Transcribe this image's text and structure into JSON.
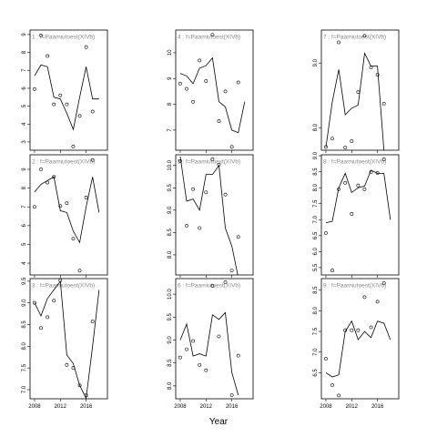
{
  "xlabel": "Year",
  "chart_data": [
    {
      "type": "scatter",
      "title": "1 : f=Paamiutoest(XIVb)",
      "x": [
        2008,
        2009,
        2010,
        2011,
        2012,
        2013,
        2014,
        2015,
        2016,
        2017,
        2018
      ],
      "points": [
        5.95,
        8.95,
        7.8,
        5.1,
        5.6,
        5.1,
        2.75,
        4.45,
        8.3,
        4.7,
        null
      ],
      "fit": [
        6.7,
        7.3,
        7.2,
        5.5,
        5.4,
        4.6,
        3.7,
        5.5,
        7.2,
        5.4,
        5.4
      ],
      "xlim": [
        2007.3,
        2019.3
      ],
      "xticks": [
        2008,
        2012,
        2016
      ],
      "ylim": [
        2.54,
        9.25
      ],
      "yticks": [
        3,
        4,
        5,
        6,
        7,
        8,
        9
      ]
    },
    {
      "type": "scatter",
      "title": "2 : f=Paamiutoest(XIVb)",
      "x": [
        2008,
        2009,
        2010,
        2011,
        2012,
        2013,
        2014,
        2015,
        2016,
        2017,
        2018
      ],
      "points": [
        7.0,
        9.0,
        8.3,
        8.6,
        7.05,
        7.2,
        5.3,
        3.6,
        7.5,
        9.5,
        null
      ],
      "fit": [
        7.8,
        8.2,
        8.4,
        8.6,
        6.8,
        6.7,
        5.7,
        5.1,
        7.0,
        8.6,
        6.7
      ],
      "xlim": [
        2007.3,
        2019.3
      ],
      "xticks": [
        2008,
        2012,
        2016
      ],
      "ylim": [
        3.37,
        9.78
      ],
      "yticks": [
        4,
        5,
        6,
        7,
        8,
        9
      ]
    },
    {
      "type": "scatter",
      "title": "3 : f=Paamiutoest(XIVb)",
      "x": [
        2008,
        2009,
        2010,
        2011,
        2012,
        2013,
        2014,
        2015,
        2016,
        2017,
        2018
      ],
      "points": [
        9.0,
        8.42,
        8.67,
        9.05,
        9.52,
        7.57,
        7.5,
        7.1,
        6.87,
        8.57,
        null
      ],
      "fit": [
        9.0,
        8.7,
        9.1,
        9.3,
        9.5,
        7.8,
        7.6,
        7.1,
        6.8,
        8.0,
        9.3
      ],
      "xlim": [
        2007.3,
        2019.3
      ],
      "xticks": [
        2008,
        2012,
        2016
      ],
      "ylim": [
        6.79,
        9.56
      ],
      "yticks": [
        {
          "value": 7,
          "label": "7.0"
        },
        7.5,
        {
          "value": 8,
          "label": "8.0"
        },
        8.5,
        {
          "value": 9,
          "label": "9.0"
        },
        9.5
      ]
    },
    {
      "type": "scatter",
      "title": "4 : f=Paamiutoest(XIVb)",
      "x": [
        2008,
        2009,
        2010,
        2011,
        2012,
        2013,
        2014,
        2015,
        2016,
        2017,
        2018
      ],
      "points": [
        8.8,
        8.6,
        8.1,
        9.7,
        8.9,
        10.7,
        7.35,
        8.5,
        6.35,
        8.85,
        null
      ],
      "fit": [
        9.2,
        9.1,
        8.8,
        9.4,
        9.5,
        9.8,
        8.1,
        7.9,
        7.0,
        6.9,
        8.1
      ],
      "xlim": [
        2007.3,
        2019.3
      ],
      "xticks": [
        2008,
        2012,
        2016
      ],
      "ylim": [
        6.22,
        10.88
      ],
      "yticks": [
        7,
        8,
        9,
        10
      ]
    },
    {
      "type": "scatter",
      "title": "5 : f=Paamiutoest(XIVb)",
      "x": [
        2008,
        2009,
        2010,
        2011,
        2012,
        2013,
        2014,
        2015,
        2016,
        2017,
        2018
      ],
      "points": [
        10.1,
        8.65,
        9.47,
        8.6,
        9.4,
        10.14,
        10.02,
        9.35,
        7.65,
        8.4,
        null
      ],
      "fit": [
        10.2,
        9.2,
        9.25,
        9.0,
        9.8,
        9.8,
        10.0,
        8.6,
        8.2,
        7.5,
        null
      ],
      "xlim": [
        2007.3,
        2019.3
      ],
      "xticks": [
        2008,
        2012,
        2016
      ],
      "ylim": [
        7.55,
        10.24
      ],
      "yticks": [
        {
          "value": 8,
          "label": "8.0"
        },
        8.5,
        {
          "value": 9,
          "label": "9.0"
        },
        9.5,
        {
          "value": 10,
          "label": "10.0"
        }
      ]
    },
    {
      "type": "scatter",
      "title": "6 : f=Paamiutoest(XIVb)",
      "x": [
        2008,
        2009,
        2010,
        2011,
        2012,
        2013,
        2014,
        2015,
        2016,
        2017,
        2018
      ],
      "points": [
        8.62,
        8.8,
        8.98,
        8.46,
        8.34,
        10.18,
        9.08,
        10.26,
        7.8,
        8.66,
        null
      ],
      "fit": [
        9.0,
        9.35,
        8.65,
        8.7,
        8.65,
        9.55,
        9.45,
        9.6,
        8.3,
        7.8,
        null
      ],
      "xlim": [
        2007.3,
        2019.3
      ],
      "xticks": [
        2008,
        2012,
        2016
      ],
      "ylim": [
        7.72,
        10.34
      ],
      "yticks": [
        {
          "value": 8,
          "label": "8.0"
        },
        8.5,
        {
          "value": 9,
          "label": "9.0"
        },
        9.5,
        {
          "value": 10,
          "label": "10.0"
        }
      ]
    },
    {
      "type": "scatter",
      "title": "7 : f=Paamiutoest(XIVb)",
      "x": [
        2008,
        2009,
        2010,
        2011,
        2012,
        2013,
        2014,
        2015,
        2016,
        2017,
        2018
      ],
      "points": [
        7.7,
        7.83,
        9.32,
        7.69,
        7.79,
        8.55,
        9.42,
        8.93,
        8.82,
        8.37,
        null
      ],
      "fit": [
        7.7,
        8.4,
        8.9,
        8.2,
        8.3,
        8.35,
        9.15,
        8.95,
        8.95,
        7.65,
        null
      ],
      "xlim": [
        2007.3,
        2019.3
      ],
      "xticks": [
        2008,
        2012,
        2016
      ],
      "ylim": [
        7.65,
        9.51
      ],
      "yticks": [
        {
          "value": 8,
          "label": "8.0"
        },
        {
          "value": 9,
          "label": "9.0"
        }
      ]
    },
    {
      "type": "scatter",
      "title": "8 : f=Paamiutoest(XIVb)",
      "x": [
        2008,
        2009,
        2010,
        2011,
        2012,
        2013,
        2014,
        2015,
        2016,
        2017,
        2018
      ],
      "points": [
        6.58,
        5.41,
        7.95,
        8.15,
        7.18,
        8.07,
        7.95,
        8.49,
        8.46,
        8.89,
        null
      ],
      "fit": [
        6.9,
        6.95,
        8.0,
        8.45,
        7.85,
        8.0,
        8.05,
        8.55,
        8.45,
        8.45,
        7.0
      ],
      "xlim": [
        2007.3,
        2019.3
      ],
      "xticks": [
        2008,
        2012,
        2016
      ],
      "ylim": [
        5.27,
        9.03
      ],
      "yticks": [
        5.5,
        {
          "value": 6,
          "label": "6.0"
        },
        6.5,
        {
          "value": 7,
          "label": "7.0"
        },
        7.5,
        {
          "value": 8,
          "label": "8.0"
        },
        8.5,
        {
          "value": 9,
          "label": "9.0"
        }
      ]
    },
    {
      "type": "scatter",
      "title": "9 : f=Paamiutoest(XIVb)",
      "x": [
        2008,
        2009,
        2010,
        2011,
        2012,
        2013,
        2014,
        2015,
        2016,
        2017,
        2018
      ],
      "points": [
        6.84,
        6.2,
        5.95,
        7.53,
        7.53,
        7.53,
        8.33,
        7.6,
        8.22,
        8.67,
        null
      ],
      "fit": [
        6.5,
        6.4,
        6.45,
        7.5,
        7.75,
        7.3,
        7.5,
        7.35,
        7.75,
        7.7,
        7.3
      ],
      "xlim": [
        2007.3,
        2019.3
      ],
      "xticks": [
        2008,
        2012,
        2016
      ],
      "ylim": [
        5.87,
        8.78
      ],
      "yticks": [
        6.5,
        {
          "value": 7,
          "label": "7.0"
        },
        7.5,
        {
          "value": 8,
          "label": "8.0"
        },
        8.5
      ]
    }
  ]
}
